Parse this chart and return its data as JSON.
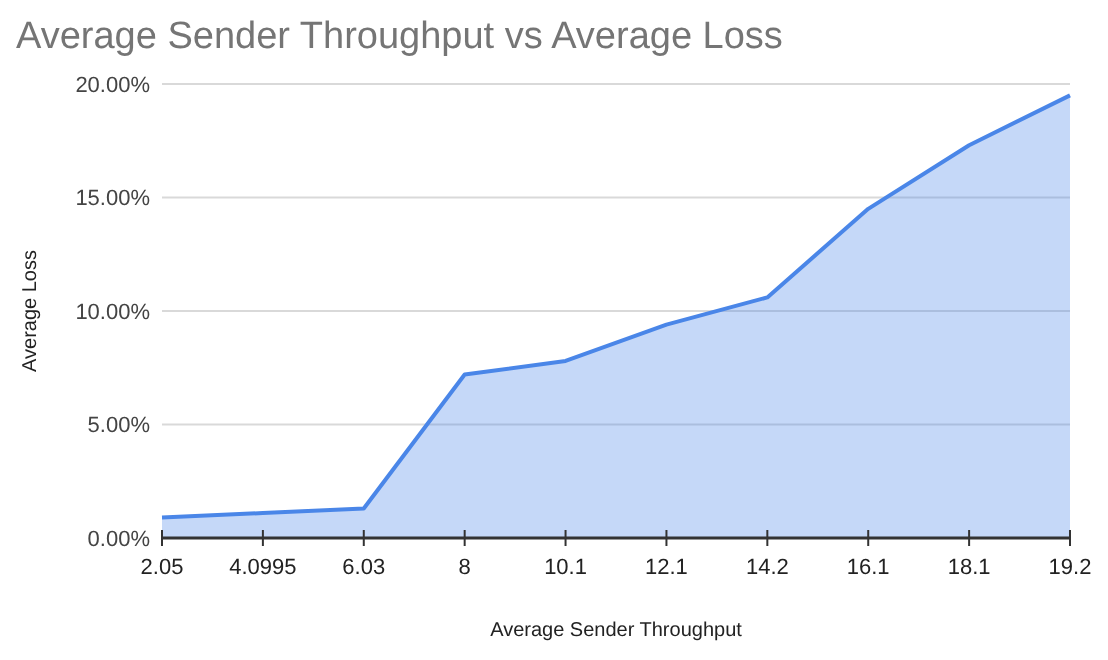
{
  "chart_data": {
    "type": "area",
    "title": "Average Sender Throughput vs Average Loss",
    "xlabel": "Average Sender Throughput",
    "ylabel": "Average Loss",
    "categories": [
      "2.05",
      "4.0995",
      "6.03",
      "8",
      "10.1",
      "12.1",
      "14.2",
      "16.1",
      "18.1",
      "19.2"
    ],
    "series": [
      {
        "color": "#4a86e8",
        "values": [
          0.9,
          1.1,
          1.3,
          7.2,
          7.8,
          9.4,
          10.6,
          14.5,
          17.3,
          19.5
        ]
      }
    ],
    "ylim": [
      0,
      20
    ],
    "yticks": [
      {
        "value": 0,
        "label": "0.00%"
      },
      {
        "value": 5,
        "label": "5.00%"
      },
      {
        "value": 10,
        "label": "10.00%"
      },
      {
        "value": 15,
        "label": "15.00%"
      },
      {
        "value": 20,
        "label": "20.00%"
      }
    ],
    "grid": "y"
  }
}
